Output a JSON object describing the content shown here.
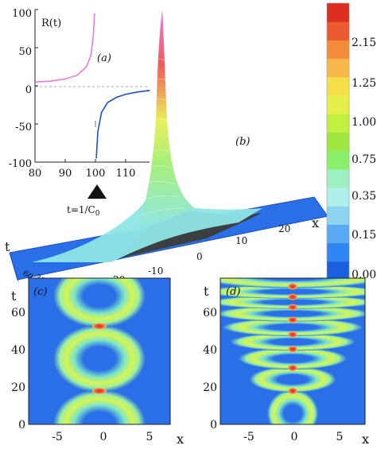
{
  "panel_a": {
    "label": "(a)",
    "ylabel": "R(t)",
    "x_ticks": [
      "80",
      "90",
      "100",
      "110"
    ],
    "y_ticks": [
      "100",
      "50",
      "0",
      "-50",
      "-100"
    ],
    "marker_label": "t=1/C",
    "marker_sub": "0",
    "colors": {
      "left_branch": "#e87ad8",
      "right_branch": "#1a4fd0"
    }
  },
  "panel_b": {
    "label": "(b)",
    "x_axis_label": "x",
    "t_axis_label": "t",
    "x_ticks": [
      "-20",
      "-10",
      "0",
      "10",
      "20"
    ],
    "t_ticks": [
      "60",
      "30",
      "0"
    ],
    "colorbar_ticks": [
      "2.15",
      "1.25",
      "1.00",
      "0.75",
      "0.35",
      "0.15",
      "0.00"
    ]
  },
  "panel_c": {
    "label": "(c)",
    "x_ticks": [
      "-5",
      "0",
      "5"
    ],
    "y_ticks": [
      "60",
      "40",
      "20",
      "0"
    ],
    "xlabel": "x",
    "ylabel": "t"
  },
  "panel_d": {
    "label": "(d)",
    "x_ticks": [
      "-5",
      "0",
      "5"
    ],
    "y_ticks": [
      "60",
      "40",
      "20",
      "0"
    ],
    "xlabel": "x",
    "ylabel": "t"
  },
  "chart_data": [
    {
      "type": "line",
      "id": "panel-a",
      "title": "",
      "xlabel": "",
      "ylabel": "R(t)",
      "xlim": [
        80,
        120
      ],
      "ylim": [
        -100,
        100
      ],
      "series": [
        {
          "x": [
            80,
            85,
            90,
            94,
            97,
            98.5,
            99.3,
            99.7
          ],
          "y": [
            5,
            6,
            9,
            14,
            25,
            40,
            65,
            95
          ]
        },
        {
          "x": [
            100.3,
            100.8,
            102,
            104,
            107,
            110,
            114,
            118
          ],
          "y": [
            -95,
            -60,
            -35,
            -22,
            -15,
            -11,
            -8,
            -6
          ]
        }
      ]
    },
    {
      "type": "colorbar",
      "id": "colorbar",
      "ticks": [
        2.15,
        1.25,
        1.0,
        0.75,
        0.35,
        0.15,
        0.0
      ],
      "colors": [
        "#1a5fe0",
        "#2f86f2",
        "#5aa9f5",
        "#8cd3f0",
        "#aff0ea",
        "#9ff0c0",
        "#8af06a",
        "#9ee640",
        "#c2f040",
        "#e6f04a",
        "#f5e04a",
        "#f7b84a",
        "#f48c3c",
        "#ee5a30",
        "#dc2e20"
      ]
    },
    {
      "type": "heatmap",
      "id": "panel-c",
      "xlim": [
        -8,
        8
      ],
      "ylim": [
        0,
        70
      ],
      "peaks_t": [
        16,
        47
      ],
      "colors": {
        "background": "#2a6fe8",
        "ring": "#bff56a",
        "core": "#e63a3a"
      }
    },
    {
      "type": "heatmap",
      "id": "panel-d",
      "xlim": [
        -8,
        8
      ],
      "ylim": [
        0,
        70
      ],
      "peaks_t": [
        16,
        27,
        36,
        43,
        50,
        56,
        61,
        66
      ],
      "colors": {
        "background": "#2a6fe8",
        "ring": "#bff56a",
        "core": "#e63a3a"
      }
    }
  ]
}
